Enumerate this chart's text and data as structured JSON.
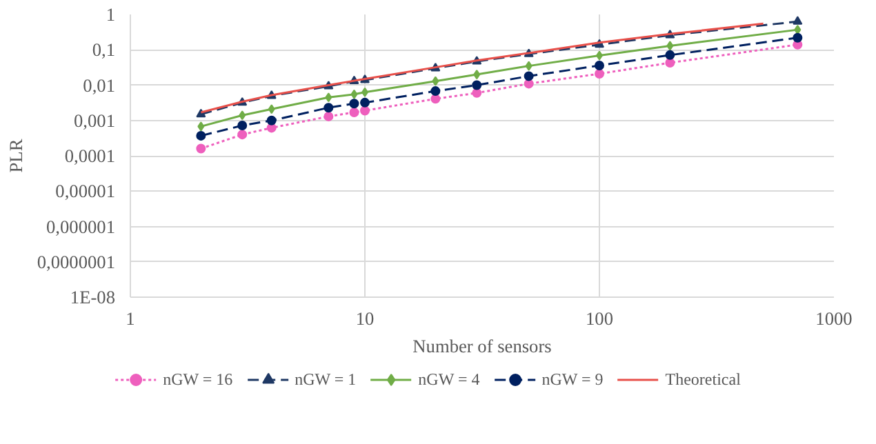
{
  "chart_data": {
    "type": "line",
    "xlabel": "Number of sensors",
    "ylabel": "PLR",
    "log": "xy",
    "grid": true,
    "legend": "bottom",
    "xlim": [
      1,
      1000
    ],
    "xticks": [
      1,
      10,
      100,
      1000
    ],
    "ylim": [
      1e-08,
      1
    ],
    "yticks": [
      {
        "value": 1e-08,
        "label": "1E-08"
      },
      {
        "value": 1e-07,
        "label": "0,0000001"
      },
      {
        "value": 1e-06,
        "label": "0,000001"
      },
      {
        "value": 1e-05,
        "label": "0,00001"
      },
      {
        "value": 0.0001,
        "label": "0,0001"
      },
      {
        "value": 0.001,
        "label": "0,001"
      },
      {
        "value": 0.01,
        "label": "0,01"
      },
      {
        "value": 0.1,
        "label": "0,1"
      },
      {
        "value": 1,
        "label": "1"
      }
    ],
    "x": [
      2,
      3,
      4,
      7,
      9,
      10,
      20,
      30,
      50,
      100,
      200,
      700
    ],
    "series": [
      {
        "name": "nGW = 16",
        "color": "#ee5fbd",
        "marker": "circle",
        "line_style": "dotted",
        "values": [
          0.00016,
          0.0004,
          0.00062,
          0.0013,
          0.0017,
          0.0019,
          0.0041,
          0.006,
          0.011,
          0.021,
          0.043,
          0.14
        ]
      },
      {
        "name": "nGW = 1",
        "color": "#1f3864",
        "marker": "triangle",
        "line_style": "dashed",
        "values": [
          0.0015,
          0.0032,
          0.005,
          0.0093,
          0.013,
          0.014,
          0.03,
          0.047,
          0.076,
          0.14,
          0.26,
          0.63
        ]
      },
      {
        "name": "nGW = 4",
        "color": "#70ad47",
        "marker": "diamond",
        "line_style": "solid",
        "values": [
          0.00068,
          0.0014,
          0.0021,
          0.0045,
          0.0055,
          0.0063,
          0.013,
          0.02,
          0.035,
          0.069,
          0.13,
          0.37
        ]
      },
      {
        "name": "nGW = 9",
        "color": "#002060",
        "marker": "circle",
        "line_style": "dashed",
        "values": [
          0.00037,
          0.00072,
          0.001,
          0.0023,
          0.003,
          0.0032,
          0.0068,
          0.01,
          0.018,
          0.036,
          0.071,
          0.22
        ]
      },
      {
        "name": "Theoretical",
        "color": "#e8504a",
        "marker": "none",
        "line_style": "solid",
        "x": [
          2,
          3,
          4,
          7,
          10,
          20,
          30,
          50,
          100,
          200,
          500
        ],
        "values": [
          0.0017,
          0.0034,
          0.0052,
          0.01,
          0.015,
          0.032,
          0.05,
          0.081,
          0.16,
          0.28,
          0.55
        ]
      }
    ]
  }
}
